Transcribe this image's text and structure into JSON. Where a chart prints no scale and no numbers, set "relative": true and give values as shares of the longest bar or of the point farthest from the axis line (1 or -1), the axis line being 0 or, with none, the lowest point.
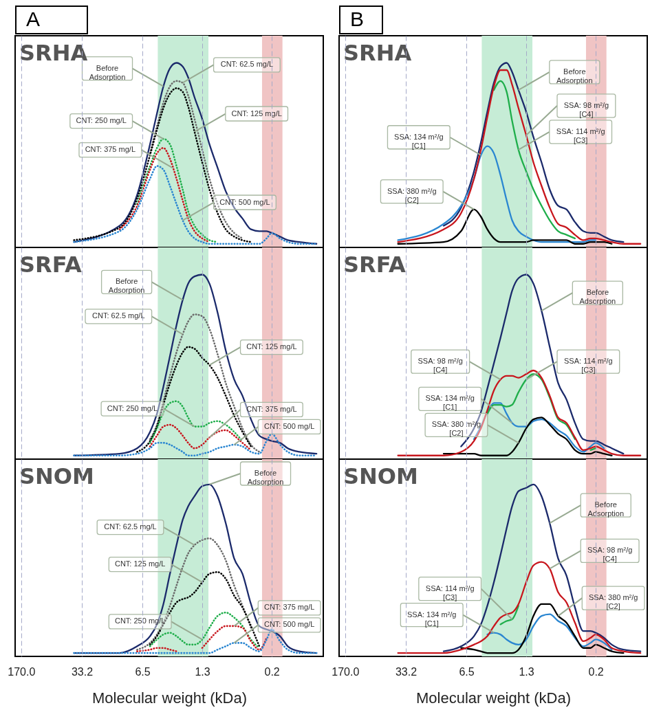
{
  "chart_data": [
    {
      "type": "line",
      "title": "A",
      "subtitle": "SRHA",
      "relative": true,
      "log": "x",
      "grid": "x",
      "tick_labels": false,
      "xlim": [
        200,
        0.05
      ],
      "xticks": [
        170,
        33.2,
        6.5,
        1.3,
        0.2
      ],
      "x": [
        41,
        12,
        7.5,
        5.3,
        4.4,
        3.7,
        3.1,
        2.6,
        2.2,
        1.9,
        1.6,
        1.3,
        1.07,
        0.86,
        0.69,
        0.55,
        0.44,
        0.35,
        0.28,
        0.23,
        0.2,
        0.16,
        0.13,
        0.095,
        0.06
      ],
      "bands": [
        {
          "axis": "x",
          "from": 4.3,
          "to": 1.1,
          "color": "#c6ecd6"
        },
        {
          "axis": "x",
          "from": 0.26,
          "to": 0.15,
          "color": "#f0c4c4"
        }
      ],
      "series": [
        {
          "color": "#1b2a6b",
          "line_style": "solid",
          "values": [
            0.01,
            0.1,
            0.27,
            0.55,
            0.72,
            0.87,
            0.97,
            1,
            0.98,
            0.92,
            0.81,
            0.69,
            0.55,
            0.42,
            0.29,
            0.2,
            0.14,
            0.08,
            0.07,
            0.07,
            0.06,
            0.04,
            0.02,
            0.01,
            0
          ]
        },
        {
          "color": "#6b6b6b",
          "line_style": "dotted",
          "values": [
            null,
            null,
            null,
            0.5,
            0.65,
            0.78,
            0.87,
            0.9,
            0.89,
            0.82,
            0.69,
            0.52,
            0.36,
            0.22,
            0.12,
            0.06,
            0.03,
            null,
            null,
            null,
            null,
            null,
            null,
            null,
            null
          ]
        },
        {
          "color": "#000000",
          "line_style": "dotted",
          "values": [
            0.02,
            0.09,
            0.25,
            0.49,
            0.63,
            0.75,
            0.83,
            0.86,
            0.84,
            0.76,
            0.62,
            0.45,
            0.3,
            0.17,
            0.08,
            0.04,
            0.02,
            0.01,
            null,
            null,
            null,
            null,
            null,
            null,
            null
          ]
        },
        {
          "color": "#1fae4b",
          "line_style": "dotted",
          "values": [
            null,
            null,
            0.22,
            0.43,
            0.53,
            0.58,
            0.55,
            0.43,
            0.3,
            0.18,
            0.1,
            0.05,
            0.02,
            0.01,
            null,
            null,
            null,
            null,
            null,
            null,
            null,
            null,
            null,
            null,
            null
          ]
        },
        {
          "color": "#c8161d",
          "line_style": "dotted",
          "values": [
            null,
            0.08,
            0.21,
            0.41,
            0.5,
            0.53,
            0.47,
            0.36,
            0.24,
            0.14,
            0.07,
            0.03,
            0.01,
            null,
            null,
            null,
            null,
            null,
            null,
            null,
            null,
            null,
            null,
            null,
            null
          ]
        },
        {
          "color": "#2a86d1",
          "line_style": "dotted",
          "values": [
            0.01,
            0.07,
            0.19,
            0.36,
            0.43,
            0.41,
            0.32,
            0.22,
            0.13,
            0.07,
            0.03,
            0.01,
            0,
            0,
            0,
            0,
            0,
            0,
            0,
            0.03,
            0.06,
            0.03,
            0.01,
            0,
            0
          ]
        }
      ],
      "annotations": [
        {
          "text": "Before\nAdsorption",
          "x": 3.7,
          "y": 0.87
        },
        {
          "text": "CNT: 62.5 mg/L",
          "x": 2.2,
          "y": 0.89
        },
        {
          "text": "CNT: 125 mg/L",
          "x": 1.6,
          "y": 0.62
        },
        {
          "text": "CNT: 250 mg/L",
          "x": 3.7,
          "y": 0.58
        },
        {
          "text": "CNT: 375 mg/L",
          "x": 2.9,
          "y": 0.42
        },
        {
          "text": "CNT: 500 mg/L",
          "x": 2.2,
          "y": 0.13
        }
      ]
    },
    {
      "type": "line",
      "title": "B",
      "subtitle": "SRHA",
      "relative": true,
      "log": "x",
      "grid": "x",
      "tick_labels": false,
      "xlim": [
        200,
        0.05
      ],
      "xticks": [
        170,
        33.2,
        6.5,
        1.3,
        0.2
      ],
      "x": [
        41,
        12,
        7.5,
        5.3,
        4.4,
        3.7,
        3.1,
        2.6,
        2.2,
        1.9,
        1.6,
        1.3,
        1.07,
        0.86,
        0.69,
        0.55,
        0.44,
        0.35,
        0.28,
        0.23,
        0.2,
        0.16,
        0.13,
        0.095,
        0.06
      ],
      "bands": [
        {
          "axis": "x",
          "from": 4.3,
          "to": 1.1,
          "color": "#c6ecd6"
        },
        {
          "axis": "x",
          "from": 0.26,
          "to": 0.15,
          "color": "#f0c4c4"
        }
      ],
      "series": [
        {
          "color": "#1b2a6b",
          "line_style": "solid",
          "values": [
            null,
            0.1,
            0.2,
            0.4,
            0.56,
            0.73,
            0.89,
            0.98,
            1,
            0.95,
            0.85,
            0.73,
            0.59,
            0.45,
            0.3,
            0.21,
            0.19,
            0.12,
            0.07,
            0.06,
            0.06,
            0.04,
            0.02,
            0.01,
            null
          ]
        },
        {
          "color": "#2a86d1",
          "line_style": "solid",
          "values": [
            0.02,
            0.11,
            0.21,
            0.36,
            0.49,
            0.54,
            0.5,
            0.38,
            0.24,
            0.13,
            0.07,
            0.04,
            0.02,
            0.01,
            0.01,
            0.01,
            0.01,
            0.01,
            0.01,
            0.02,
            0.02,
            null,
            null,
            null,
            null
          ]
        },
        {
          "color": "#000000",
          "line_style": "solid",
          "values": [
            0,
            0.01,
            0.07,
            0.19,
            0.15,
            0.08,
            0.03,
            0.01,
            0.01,
            0.01,
            0.01,
            0.01,
            0.02,
            0.02,
            0.02,
            0.02,
            0.02,
            0,
            0,
            0.01,
            0.01,
            0.01,
            0,
            null,
            null
          ]
        },
        {
          "color": "#1fae4b",
          "line_style": "solid",
          "values": [
            null,
            null,
            null,
            null,
            null,
            null,
            0.85,
            0.9,
            0.84,
            0.68,
            0.52,
            0.4,
            0.3,
            0.21,
            0.13,
            0.07,
            0.05,
            0.03,
            null,
            null,
            null,
            null,
            null,
            null,
            null
          ]
        },
        {
          "color": "#c8161d",
          "line_style": "solid",
          "values": [
            0.01,
            0.08,
            0.17,
            0.36,
            0.52,
            0.7,
            0.87,
            0.96,
            0.96,
            0.88,
            0.75,
            0.6,
            0.45,
            0.32,
            0.2,
            0.11,
            0.09,
            0.05,
            0.02,
            0.03,
            0.03,
            0.02,
            0.01,
            0,
            0
          ]
        }
      ],
      "annotations": [
        {
          "text": "Before\nAdsorption",
          "x": 1.6,
          "y": 0.85
        },
        {
          "text": "SSA: 98 m²/g\n[C4]",
          "x": 1.3,
          "y": 0.6
        },
        {
          "text": "SSA: 134 m²/g\n[C1]",
          "x": 4.4,
          "y": 0.49
        },
        {
          "text": "SSA: 114 m²/g\n[C3]",
          "x": 1.6,
          "y": 0.52
        },
        {
          "text": "SSA: 380 m²/g\n[C2]",
          "x": 5.3,
          "y": 0.19
        }
      ]
    },
    {
      "type": "line",
      "subtitle": "SRFA",
      "relative": true,
      "log": "x",
      "grid": "x",
      "tick_labels": false,
      "xlim": [
        200,
        0.05
      ],
      "xticks": [
        170,
        33.2,
        6.5,
        1.3,
        0.2
      ],
      "x": [
        41,
        12,
        7.5,
        5.3,
        4.4,
        3.7,
        3.1,
        2.6,
        2.2,
        1.9,
        1.6,
        1.3,
        1.07,
        0.86,
        0.69,
        0.55,
        0.44,
        0.35,
        0.28,
        0.23,
        0.2,
        0.16,
        0.13,
        0.095,
        0.06
      ],
      "bands": [
        {
          "axis": "x",
          "from": 4.3,
          "to": 1.1,
          "color": "#c6ecd6"
        },
        {
          "axis": "x",
          "from": 0.26,
          "to": 0.15,
          "color": "#f0c4c4"
        }
      ],
      "series": [
        {
          "color": "#1b2a6b",
          "line_style": "solid",
          "values": [
            0,
            0.01,
            0.04,
            0.13,
            0.23,
            0.38,
            0.55,
            0.72,
            0.86,
            0.95,
            0.99,
            1,
            0.95,
            0.79,
            0.58,
            0.42,
            0.33,
            0.2,
            0.11,
            0.09,
            0.08,
            0.07,
            0.04,
            0.02,
            0.01
          ]
        },
        {
          "color": "#6b6b6b",
          "line_style": "dotted",
          "values": [
            null,
            null,
            null,
            0.09,
            0.17,
            0.3,
            0.44,
            0.57,
            0.67,
            0.74,
            0.78,
            0.77,
            0.7,
            0.56,
            0.4,
            0.27,
            0.15,
            0.06,
            0.02,
            null,
            null,
            null,
            null,
            null,
            null
          ]
        },
        {
          "color": "#000000",
          "line_style": "dotted",
          "values": [
            null,
            null,
            0.02,
            0.08,
            0.16,
            0.28,
            0.4,
            0.5,
            0.57,
            0.6,
            0.59,
            0.54,
            0.5,
            0.43,
            0.33,
            0.22,
            0.13,
            0.05,
            null,
            null,
            null,
            null,
            null,
            null,
            null
          ]
        },
        {
          "color": "#1fae4b",
          "line_style": "dotted",
          "values": [
            null,
            null,
            null,
            0.07,
            0.15,
            0.24,
            0.29,
            0.3,
            0.27,
            0.21,
            0.16,
            0.16,
            0.18,
            0.19,
            0.17,
            0.13,
            0.08,
            null,
            null,
            null,
            null,
            null,
            null,
            null,
            null
          ]
        },
        {
          "color": "#c8161d",
          "line_style": "dotted",
          "values": [
            null,
            null,
            null,
            0.05,
            0.11,
            0.16,
            0.17,
            0.15,
            0.11,
            0.07,
            0.04,
            0.06,
            0.1,
            0.13,
            0.14,
            0.11,
            0.07,
            0.03,
            null,
            null,
            null,
            null,
            null,
            null,
            null
          ]
        },
        {
          "color": "#2a86d1",
          "line_style": "dotted",
          "values": [
            0,
            0,
            0.01,
            0.04,
            0.07,
            0.07,
            0.06,
            0.04,
            0.02,
            0,
            0,
            0.01,
            0.02,
            0.04,
            0.05,
            0.06,
            0.05,
            0.02,
            0.01,
            0.08,
            0.12,
            0.06,
            0.02,
            0,
            0
          ]
        }
      ],
      "annotations": [
        {
          "text": "Before\nAdsorption",
          "x": 2.2,
          "y": 0.86
        },
        {
          "text": "CNT: 62.5 mg/L",
          "x": 2.2,
          "y": 0.67
        },
        {
          "text": "CNT: 125 mg/L",
          "x": 1.07,
          "y": 0.5
        },
        {
          "text": "CNT: 250 mg/L",
          "x": 1.6,
          "y": 0.16
        },
        {
          "text": "CNT: 375 mg/L",
          "x": 1.07,
          "y": 0.1
        },
        {
          "text": "CNT: 500 mg/L",
          "x": 0.55,
          "y": 0.06
        }
      ]
    },
    {
      "type": "line",
      "subtitle": "SRFA",
      "relative": true,
      "log": "x",
      "grid": "x",
      "tick_labels": false,
      "xlim": [
        200,
        0.05
      ],
      "xticks": [
        170,
        33.2,
        6.5,
        1.3,
        0.2
      ],
      "x": [
        41,
        12,
        7.5,
        5.3,
        4.4,
        3.7,
        3.1,
        2.6,
        2.2,
        1.9,
        1.6,
        1.3,
        1.07,
        0.86,
        0.69,
        0.55,
        0.44,
        0.35,
        0.28,
        0.23,
        0.2,
        0.16,
        0.13,
        0.095,
        0.06
      ],
      "bands": [
        {
          "axis": "x",
          "from": 4.3,
          "to": 1.1,
          "color": "#c6ecd6"
        },
        {
          "axis": "x",
          "from": 0.26,
          "to": 0.15,
          "color": "#f0c4c4"
        }
      ],
      "series": [
        {
          "color": "#1b2a6b",
          "line_style": "solid",
          "values": [
            null,
            null,
            0.05,
            0.15,
            0.24,
            0.37,
            0.51,
            0.65,
            0.79,
            0.91,
            0.98,
            1,
            0.95,
            0.8,
            0.6,
            0.4,
            0.31,
            0.18,
            0.09,
            0.08,
            0.08,
            0.06,
            0.04,
            0.01,
            null
          ]
        },
        {
          "color": "#2a86d1",
          "line_style": "solid",
          "values": [
            null,
            null,
            null,
            0.09,
            0.16,
            0.24,
            0.29,
            0.29,
            0.23,
            0.18,
            0.16,
            0.16,
            0.19,
            0.2,
            0.18,
            0.14,
            0.11,
            0.05,
            0.02,
            0.05,
            0.07,
            0.04,
            null,
            null,
            null
          ]
        },
        {
          "color": "#000000",
          "line_style": "solid",
          "values": [
            null,
            0.01,
            0.01,
            0.01,
            0,
            0,
            0,
            0,
            0,
            0.02,
            0.07,
            0.15,
            0.2,
            0.21,
            0.17,
            0.12,
            0.09,
            0.03,
            0.01,
            0.01,
            0.02,
            0.01,
            0,
            null,
            null
          ]
        },
        {
          "color": "#1fae4b",
          "line_style": "solid",
          "values": [
            null,
            null,
            null,
            null,
            null,
            0.23,
            0.28,
            0.28,
            0.27,
            0.28,
            0.35,
            0.42,
            0.45,
            0.42,
            0.32,
            0.2,
            0.17,
            0.09,
            null,
            0.03,
            0.04,
            null,
            null,
            null,
            null
          ]
        },
        {
          "color": "#c8161d",
          "line_style": "solid",
          "values": [
            0,
            0,
            0.02,
            0.08,
            0.15,
            0.25,
            0.36,
            0.42,
            0.44,
            0.44,
            0.43,
            0.45,
            0.47,
            0.43,
            0.33,
            0.21,
            0.18,
            0.1,
            0.03,
            0.04,
            0.05,
            0.03,
            0.01,
            0,
            0
          ]
        }
      ],
      "annotations": [
        {
          "text": "Before\nAdsorption",
          "x": 0.86,
          "y": 0.8
        },
        {
          "text": "SSA: 98 m²/g\n[C4]",
          "x": 2.6,
          "y": 0.42
        },
        {
          "text": "SSA: 114 m²/g\n[C3]",
          "x": 1.3,
          "y": 0.42
        },
        {
          "text": "SSA: 134 m²/g\n[C1]",
          "x": 1.9,
          "y": 0.18
        },
        {
          "text": "SSA: 380 m²/g\n[C2]",
          "x": 1.6,
          "y": 0.07
        }
      ]
    },
    {
      "type": "line",
      "subtitle": "SNOM",
      "xlabel": "Molecular weight (kDa)",
      "relative": true,
      "log": "x",
      "grid": "x",
      "tick_labels": "x",
      "xlim": [
        200,
        0.05
      ],
      "xticks": [
        {
          "value": 170,
          "label": "170.0"
        },
        33.2,
        6.5,
        1.3,
        0.2
      ],
      "x": [
        41,
        12,
        7.5,
        5.3,
        4.4,
        3.7,
        3.1,
        2.6,
        2.2,
        1.9,
        1.6,
        1.3,
        1.07,
        0.86,
        0.69,
        0.55,
        0.44,
        0.35,
        0.28,
        0.23,
        0.2,
        0.16,
        0.13,
        0.095,
        0.06
      ],
      "bands": [
        {
          "axis": "x",
          "from": 4.3,
          "to": 1.1,
          "color": "#c6ecd6"
        },
        {
          "axis": "x",
          "from": 0.26,
          "to": 0.15,
          "color": "#f0c4c4"
        }
      ],
      "series": [
        {
          "color": "#1b2a6b",
          "line_style": "solid",
          "values": [
            0,
            0,
            0.04,
            0.1,
            0.17,
            0.29,
            0.47,
            0.64,
            0.79,
            0.87,
            0.93,
            0.99,
            1,
            0.93,
            0.77,
            0.56,
            0.47,
            0.29,
            0.16,
            0.14,
            0.13,
            0.1,
            0.04,
            0.01,
            0
          ]
        },
        {
          "color": "#6b6b6b",
          "line_style": "dotted",
          "values": [
            null,
            null,
            0.02,
            0.06,
            0.11,
            0.18,
            0.28,
            0.4,
            0.51,
            0.59,
            0.64,
            0.67,
            0.68,
            0.64,
            0.55,
            0.4,
            0.28,
            0.15,
            null,
            null,
            null,
            null,
            null,
            null,
            null
          ]
        },
        {
          "color": "#000000",
          "line_style": "dotted",
          "values": [
            null,
            null,
            null,
            0.05,
            0.1,
            0.17,
            0.24,
            0.3,
            0.32,
            0.33,
            0.36,
            0.42,
            0.47,
            0.48,
            0.44,
            0.34,
            0.27,
            0.16,
            0.04,
            null,
            null,
            null,
            null,
            null,
            null
          ]
        },
        {
          "color": "#1fae4b",
          "line_style": "dotted",
          "values": [
            null,
            null,
            null,
            0.04,
            0.08,
            0.11,
            0.12,
            0.1,
            0.07,
            0.05,
            0.05,
            0.08,
            0.15,
            0.22,
            0.24,
            0.21,
            0.16,
            0.08,
            0.03,
            null,
            null,
            null,
            null,
            null,
            null
          ]
        },
        {
          "color": "#c8161d",
          "line_style": "dotted",
          "values": [
            null,
            null,
            0.01,
            0.02,
            0.03,
            0.03,
            0.02,
            0.01,
            null,
            null,
            null,
            0.03,
            0.08,
            0.13,
            0.16,
            0.16,
            0.15,
            0.07,
            0.02,
            0.09,
            null,
            null,
            null,
            null,
            null
          ]
        },
        {
          "color": "#2a86d1",
          "line_style": "dotted",
          "values": [
            0,
            0,
            0,
            0,
            0,
            0,
            0,
            0,
            0,
            0,
            0,
            0,
            0,
            0.02,
            0.04,
            0.06,
            0.06,
            0.03,
            0.01,
            0.08,
            0.14,
            0.07,
            0.02,
            0,
            0
          ]
        }
      ],
      "annotations": [
        {
          "text": "Before\nAdsorption",
          "x": 1.07,
          "y": 1
        },
        {
          "text": "CNT: 62.5 mg/L",
          "x": 1.6,
          "y": 0.64
        },
        {
          "text": "CNT: 125 mg/L",
          "x": 1.3,
          "y": 0.42
        },
        {
          "text": "CNT: 250 mg/L",
          "x": 1.3,
          "y": 0.08
        },
        {
          "text": "CNT: 375 mg/L",
          "x": 0.55,
          "y": 0.16
        },
        {
          "text": "CNT: 500 mg/L",
          "x": 0.55,
          "y": 0.06
        }
      ]
    },
    {
      "type": "line",
      "subtitle": "SNOM",
      "xlabel": "Molecular weight (kDa)",
      "relative": true,
      "log": "x",
      "grid": "x",
      "tick_labels": "x",
      "xlim": [
        200,
        0.05
      ],
      "xticks": [
        {
          "value": 170,
          "label": "170.0"
        },
        33.2,
        6.5,
        1.3,
        0.2
      ],
      "x": [
        41,
        12,
        7.5,
        5.3,
        4.4,
        3.7,
        3.1,
        2.6,
        2.2,
        1.9,
        1.6,
        1.3,
        1.07,
        0.86,
        0.69,
        0.55,
        0.44,
        0.35,
        0.28,
        0.23,
        0.2,
        0.16,
        0.13,
        0.095,
        0.06
      ],
      "bands": [
        {
          "axis": "x",
          "from": 4.3,
          "to": 1.1,
          "color": "#c6ecd6"
        },
        {
          "axis": "x",
          "from": 0.26,
          "to": 0.15,
          "color": "#f0c4c4"
        }
      ],
      "series": [
        {
          "color": "#1b2a6b",
          "line_style": "solid",
          "values": [
            null,
            0.01,
            0.04,
            0.1,
            0.17,
            0.28,
            0.42,
            0.58,
            0.74,
            0.87,
            0.96,
            0.98,
            1,
            0.93,
            0.77,
            0.56,
            0.46,
            0.27,
            0.13,
            0.13,
            0.12,
            0.09,
            0.05,
            0.02,
            0.01
          ]
        },
        {
          "color": "#2a86d1",
          "line_style": "solid",
          "values": [
            null,
            null,
            null,
            null,
            null,
            0.11,
            0.12,
            0.11,
            0.08,
            0.06,
            0.05,
            0.08,
            0.16,
            0.22,
            0.23,
            0.19,
            0.16,
            0.09,
            0.04,
            0.06,
            0.08,
            0.06,
            0.02,
            null,
            null
          ]
        },
        {
          "color": "#000000",
          "line_style": "solid",
          "values": [
            null,
            null,
            0.03,
            0.02,
            0.01,
            0,
            0,
            0,
            0,
            0,
            0.02,
            0.1,
            0.22,
            0.29,
            0.29,
            0.22,
            0.18,
            0.1,
            0.03,
            0.03,
            0.05,
            0.03,
            0.01,
            0,
            null
          ]
        },
        {
          "color": "#1fae4b",
          "line_style": "solid",
          "values": [
            null,
            null,
            null,
            null,
            null,
            null,
            null,
            0.17,
            0.19,
            0.2,
            0.28,
            null,
            null,
            null,
            null,
            null,
            null,
            null,
            null,
            null,
            null,
            null,
            null,
            null,
            null
          ]
        },
        {
          "color": "#c8161d",
          "line_style": "solid",
          "values": [
            0,
            0,
            0.02,
            0.05,
            0.07,
            0.1,
            0.16,
            0.21,
            0.23,
            0.24,
            0.29,
            0.42,
            0.52,
            0.54,
            0.5,
            0.36,
            0.3,
            0.18,
            0.07,
            0.09,
            0.11,
            0.08,
            0.03,
            0.01,
            0
          ]
        }
      ],
      "annotations": [
        {
          "text": "Before\nAdsorption",
          "x": 0.69,
          "y": 0.77
        },
        {
          "text": "SSA: 98 m²/g\n[C4]",
          "x": 0.69,
          "y": 0.5
        },
        {
          "text": "SSA: 114 m²/g\n[C3]",
          "x": 1.9,
          "y": 0.2
        },
        {
          "text": "SSA: 134 m²/g\n[C1]",
          "x": 3.1,
          "y": 0.12
        },
        {
          "text": "SSA: 380 m²/g\n[C2]",
          "x": 0.55,
          "y": 0.22
        }
      ]
    }
  ]
}
